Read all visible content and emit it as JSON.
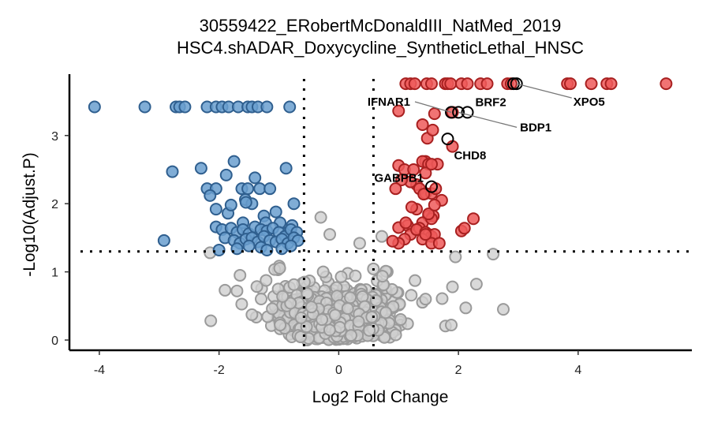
{
  "chart_data": {
    "type": "scatter",
    "title": "30559422_ERobertMcDonaldIII_NatMed_2019",
    "subtitle": "HSC4.shADAR_Doxycycline_SyntheticLethal_HNSC",
    "xlabel": "Log2 Fold Change",
    "ylabel": "-Log10(Adjust.P)",
    "xlim": [
      -4.5,
      5.9
    ],
    "ylim": [
      -0.15,
      3.9
    ],
    "xticks": [
      -4,
      -2,
      0,
      2,
      4
    ],
    "xtick_labels": [
      "-4",
      "-2",
      "0",
      "2",
      "4"
    ],
    "yticks": [
      0,
      1,
      2,
      3
    ],
    "ytick_labels": [
      "0",
      "1",
      "2",
      "3"
    ],
    "thresholds": {
      "log2fc": [
        -0.58,
        0.58
      ],
      "neg_log10_p": 1.3
    },
    "grid": false,
    "legend": "none",
    "colors": {
      "down_fill": "#6a9fcf",
      "down_stroke": "#2f5f8f",
      "up_fill": "#ef5a5a",
      "up_stroke": "#a82020",
      "ns_fill": "#d0d0d0",
      "ns_stroke": "#9a9a9a",
      "highlight_stroke": "#000000",
      "connector": "#777777"
    },
    "series": [
      {
        "group": "down",
        "x": [
          -4.08,
          -3.24,
          -2.72,
          -2.66,
          -2.57,
          -2.2,
          -2.05,
          -1.95,
          -1.84,
          -1.68,
          -1.52,
          -1.45,
          -1.35,
          -1.2,
          -0.82,
          -2.78,
          -2.3,
          -2.2,
          -2.05,
          -1.88,
          -1.75,
          -1.62,
          -1.52,
          -1.4,
          -1.32,
          -1.15,
          -0.88,
          -1.85,
          -1.56,
          -1.25,
          -0.75,
          -1.45,
          -2.15,
          -2.05,
          -1.8,
          -1.6,
          -1.55,
          -1.22,
          -1.05,
          -0.98,
          -0.85,
          -0.78,
          -2.05,
          -1.95,
          -1.8,
          -1.7,
          -1.6,
          -1.5,
          -1.4,
          -1.3,
          -1.2,
          -1.1,
          -1.0,
          -0.9,
          -0.8,
          -0.7,
          -1.9,
          -1.75,
          -1.65,
          -1.55,
          -1.45,
          -1.35,
          -1.25,
          -1.15,
          -1.05,
          -0.95,
          -0.85,
          -0.75,
          -0.68,
          -2.92,
          -1.7,
          -1.5,
          -1.3,
          -1.2,
          -0.95,
          -0.8,
          -2.0
        ],
        "y": [
          3.42,
          3.42,
          3.42,
          3.42,
          3.42,
          3.42,
          3.42,
          3.42,
          3.42,
          3.42,
          3.42,
          3.42,
          3.42,
          3.42,
          3.42,
          2.47,
          2.52,
          2.22,
          2.22,
          2.42,
          2.62,
          2.22,
          2.22,
          2.38,
          2.22,
          2.22,
          2.52,
          1.86,
          2.06,
          1.82,
          2.0,
          2.0,
          2.12,
          1.92,
          1.98,
          1.72,
          2.02,
          1.72,
          1.88,
          1.72,
          1.58,
          1.68,
          1.66,
          1.62,
          1.64,
          1.58,
          1.62,
          1.56,
          1.66,
          1.62,
          1.6,
          1.64,
          1.58,
          1.52,
          1.62,
          1.58,
          1.5,
          1.46,
          1.42,
          1.48,
          1.5,
          1.44,
          1.52,
          1.46,
          1.44,
          1.48,
          1.42,
          1.5,
          1.46,
          1.46,
          1.34,
          1.38,
          1.36,
          1.32,
          1.34,
          1.38,
          1.32
        ]
      },
      {
        "group": "up",
        "x": [
          1.12,
          1.2,
          1.27,
          1.47,
          1.55,
          1.78,
          1.82,
          1.87,
          2.05,
          2.15,
          2.37,
          2.48,
          2.82,
          2.88,
          3.82,
          3.87,
          4.22,
          4.48,
          4.55,
          5.47,
          1.0,
          1.4,
          1.6,
          1.9,
          1.48,
          1.57,
          1.45,
          1.9,
          1.4,
          1.5,
          1.65,
          1.0,
          1.1,
          1.25,
          1.45,
          1.55,
          1.3,
          1.2,
          1.05,
          0.95,
          1.35,
          1.45,
          1.55,
          1.62,
          1.42,
          1.72,
          1.3,
          1.5,
          1.58,
          1.4,
          1.22,
          1.15,
          1.35,
          1.55,
          1.5,
          1.6,
          2.25,
          2.05,
          2.1,
          1.0,
          1.12,
          1.2,
          1.3,
          1.45,
          1.5,
          1.55,
          1.6,
          1.4,
          1.1,
          1.0,
          0.9,
          1.55,
          1.45,
          1.68
        ],
        "y": [
          3.76,
          3.76,
          3.76,
          3.76,
          3.76,
          3.76,
          3.76,
          3.76,
          3.76,
          3.76,
          3.76,
          3.76,
          3.76,
          3.76,
          3.76,
          3.76,
          3.76,
          3.76,
          3.76,
          3.76,
          3.36,
          3.16,
          3.32,
          3.34,
          2.96,
          3.08,
          2.62,
          2.84,
          2.62,
          2.58,
          2.58,
          2.56,
          2.5,
          2.5,
          2.45,
          2.58,
          2.28,
          2.32,
          2.35,
          2.22,
          2.22,
          2.15,
          2.15,
          2.22,
          2.14,
          2.05,
          1.92,
          1.82,
          1.82,
          1.72,
          1.95,
          1.68,
          1.64,
          1.78,
          1.85,
          1.98,
          1.78,
          1.6,
          1.64,
          1.65,
          1.72,
          1.55,
          1.62,
          1.58,
          1.55,
          1.52,
          1.55,
          1.48,
          1.48,
          1.42,
          1.45,
          1.42,
          1.55,
          1.42
        ]
      }
    ],
    "labels": [
      {
        "text": "XPO5",
        "x": 2.97,
        "y": 3.76
      },
      {
        "text": "BRF2",
        "x": 2.15,
        "y": 3.34
      },
      {
        "text": "IFNAR1",
        "x": 1.88,
        "y": 3.34
      },
      {
        "text": "BDP1",
        "x": 2.0,
        "y": 3.34
      },
      {
        "text": "CHD8",
        "x": 1.82,
        "y": 2.95
      },
      {
        "text": "GABPB1",
        "x": 1.55,
        "y": 2.25
      }
    ]
  }
}
